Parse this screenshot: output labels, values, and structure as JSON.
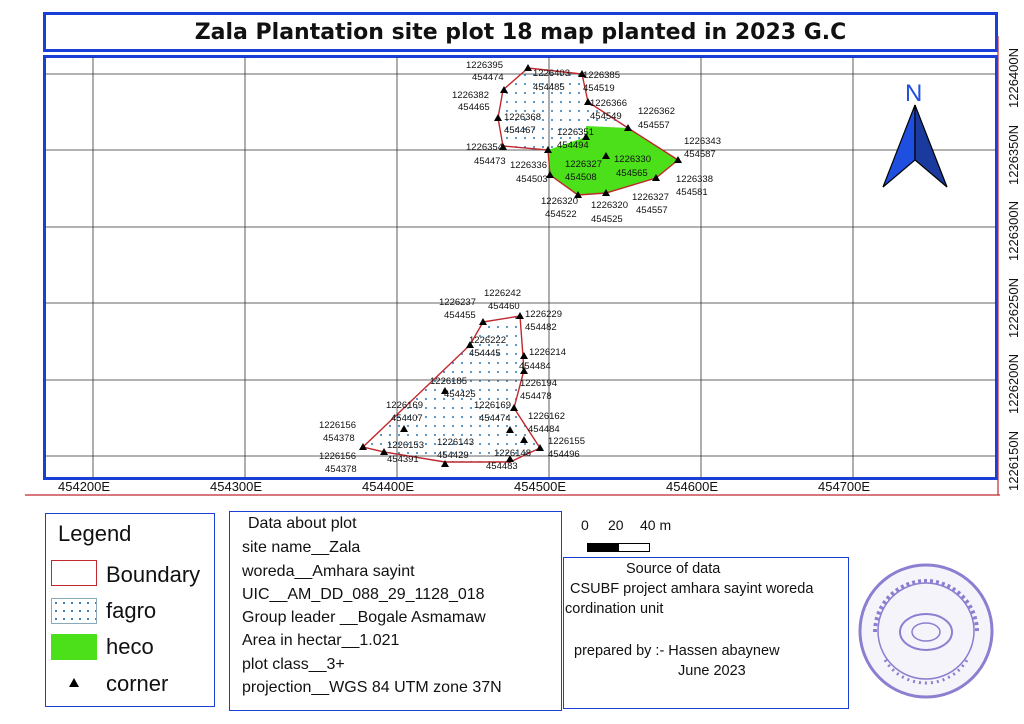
{
  "title": "Zala Plantation site plot 18 map planted in 2023 G.C",
  "north_arrow": {
    "label": "N",
    "icon": "north-arrow-icon",
    "color": "#1f4fe0"
  },
  "x_ticks": [
    "454200E",
    "454300E",
    "454400E",
    "454500E",
    "454600E",
    "454700E"
  ],
  "y_ticks": [
    "1226150N",
    "1226200N",
    "1226250N",
    "1226300N",
    "1226350N",
    "1226400N"
  ],
  "colors": {
    "frame": "#1a3fd6",
    "boundary": "#c1282d",
    "heco": "#4be01a",
    "fagro_dot": "#2a7ab8",
    "grid": "#333333"
  },
  "point_labels": [
    "1226395",
    "454474",
    "1226403",
    "454485",
    "1226385",
    "454519",
    "1226382",
    "454465",
    "1226368",
    "454467",
    "1226366",
    "454549",
    "1226362",
    "454557",
    "1226351",
    "454494",
    "1226343",
    "454587",
    "1226354",
    "454473",
    "1226336",
    "454503",
    "1226327",
    "454508",
    "1226330",
    "454565",
    "1226338",
    "454581",
    "1226327",
    "454557",
    "1226320",
    "454522",
    "1226320",
    "454525",
    "1226242",
    "454460",
    "1226237",
    "454455",
    "1226229",
    "454482",
    "1226222",
    "454445",
    "1226214",
    "454484",
    "1226185",
    "454425",
    "1226194",
    "454478",
    "1226169",
    "454407",
    "1226169",
    "454474",
    "1226162",
    "454484",
    "1226156",
    "454378",
    "1226153",
    "454391",
    "1226143",
    "454429",
    "1226148",
    "454483",
    "1226155",
    "454496",
    "1226156",
    "454378"
  ],
  "legend": {
    "title": "Legend",
    "items": [
      {
        "label": "Boundary",
        "type": "boundary"
      },
      {
        "label": "fagro",
        "type": "fagro"
      },
      {
        "label": "heco",
        "type": "heco"
      },
      {
        "label": "corner",
        "type": "corner",
        "icon": "triangle-icon"
      }
    ]
  },
  "plot_data": {
    "heading": "Data about plot",
    "lines": [
      "site name__Zala",
      "woreda__Amhara sayint",
      "UIC__AM_DD_088_29_1128_018",
      "Group leader __Bogale Asmamaw",
      "Area in hectar__1.021",
      "plot class__3+",
      "projection__WGS 84 UTM zone 37N"
    ]
  },
  "scale_bar": {
    "labels": [
      "0",
      "20",
      "40 m"
    ]
  },
  "source": {
    "heading": "Source of data",
    "lines": [
      "CSUBF project amhara sayint woreda",
      "cordination unit"
    ],
    "prepared_by": "prepared by :- Hassen abaynew",
    "date": "June 2023"
  },
  "stamp": {
    "text": "ሳይንት ወረዳ ግብርና ጽ/ቤት",
    "color": "#8a7fd0"
  }
}
